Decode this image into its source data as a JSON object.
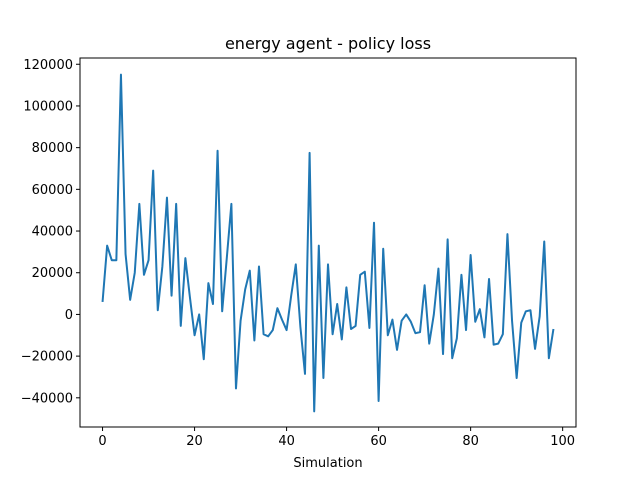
{
  "chart_data": {
    "type": "line",
    "title": "energy agent - policy loss",
    "xlabel": "Simulation",
    "ylabel": "",
    "xlim": [
      -4.9,
      102.9
    ],
    "ylim": [
      -54000,
      123000
    ],
    "x_ticks": [
      0,
      20,
      40,
      60,
      80,
      100
    ],
    "x_tick_labels": [
      "0",
      "20",
      "40",
      "60",
      "80",
      "100"
    ],
    "y_ticks": [
      -40000,
      -20000,
      0,
      20000,
      40000,
      60000,
      80000,
      100000,
      120000
    ],
    "y_tick_labels": [
      "−40000",
      "−20000",
      "0",
      "20000",
      "40000",
      "60000",
      "80000",
      "100000",
      "120000"
    ],
    "grid": false,
    "legend": "none",
    "line_color": "#1f77b4",
    "series": [
      {
        "x": [
          0,
          1,
          2,
          3,
          4,
          5,
          6,
          7,
          8,
          9,
          10,
          11,
          12,
          13,
          14,
          15,
          16,
          17,
          18,
          19,
          20,
          21,
          22,
          23,
          24,
          25,
          26,
          27,
          28,
          29,
          30,
          31,
          32,
          33,
          34,
          35,
          36,
          37,
          38,
          39,
          40,
          41,
          42,
          43,
          44,
          45,
          46,
          47,
          48,
          49,
          50,
          51,
          52,
          53,
          54,
          55,
          56,
          57,
          58,
          59,
          60,
          61,
          62,
          63,
          64,
          65,
          66,
          67,
          68,
          69,
          70,
          71,
          72,
          73,
          74,
          75,
          76,
          77,
          78,
          79,
          80,
          81,
          82,
          83,
          84,
          85,
          86,
          87,
          88,
          89,
          90,
          91,
          92,
          93,
          94,
          95,
          96,
          97,
          98
        ],
        "values": [
          6000,
          33000,
          26000,
          26000,
          115000,
          29000,
          7000,
          20000,
          53000,
          19000,
          26000,
          69000,
          2000,
          23000,
          56000,
          9000,
          53000,
          -5500,
          27000,
          8000,
          -10000,
          0,
          -21500,
          15000,
          5000,
          78500,
          1500,
          27000,
          53000,
          -35500,
          -3000,
          12000,
          21000,
          -12500,
          23000,
          -9500,
          -10500,
          -7500,
          3000,
          -2500,
          -7500,
          9000,
          24000,
          -6000,
          -28500,
          77500,
          -46500,
          33000,
          -30500,
          24000,
          -9500,
          5000,
          -12000,
          13000,
          -7000,
          -5500,
          19000,
          20500,
          -6500,
          44000,
          -41500,
          31500,
          -10000,
          -2500,
          -17000,
          -3000,
          0,
          -3500,
          -9000,
          -8500,
          14000,
          -14000,
          0,
          22000,
          -19000,
          36000,
          -21000,
          -11500,
          19000,
          -7500,
          28500,
          -3500,
          2500,
          -11000,
          17000,
          -14500,
          -14000,
          -9500,
          38500,
          -3000,
          -30500,
          -4000,
          1500,
          2000,
          -16500,
          -1000,
          35000,
          -21000,
          -7000
        ]
      }
    ]
  }
}
